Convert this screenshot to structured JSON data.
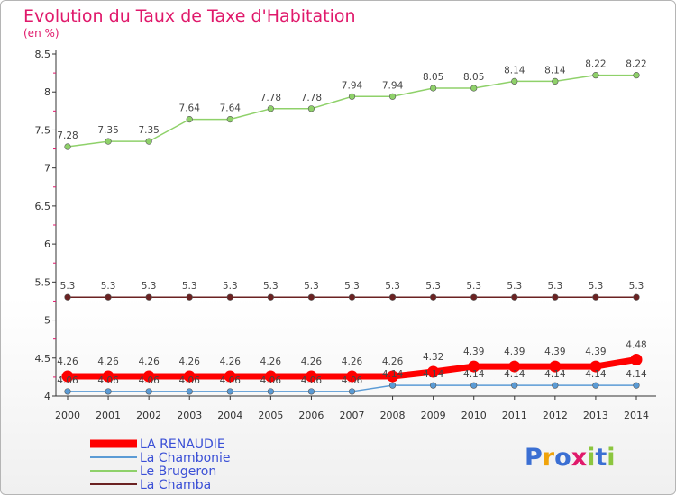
{
  "title": "Evolution du Taux de Taxe d'Habitation",
  "subtitle": "(en %)",
  "logo": {
    "letters": [
      "P",
      "r",
      "o",
      "x",
      "i",
      "t",
      "i"
    ],
    "colors": [
      "#3b6fd3",
      "#f0a30a",
      "#3b6fd3",
      "#e0196b",
      "#8cc63f",
      "#3b6fd3",
      "#8cc63f"
    ]
  },
  "chart_data": {
    "type": "line",
    "x": [
      "2000",
      "2001",
      "2002",
      "2003",
      "2004",
      "2005",
      "2006",
      "2007",
      "2008",
      "2009",
      "2010",
      "2011",
      "2012",
      "2013",
      "2014"
    ],
    "ylim": [
      4,
      8.5
    ],
    "yticks": [
      "4",
      "4.5",
      "5",
      "5.5",
      "6",
      "6.5",
      "7",
      "7.5",
      "8",
      "8.5"
    ],
    "grid": false,
    "legend_position": "bottom-left",
    "series": [
      {
        "name": "LA RENAUDIE",
        "color": "#ff0000",
        "values": [
          4.26,
          4.26,
          4.26,
          4.26,
          4.26,
          4.26,
          4.26,
          4.26,
          4.26,
          4.32,
          4.39,
          4.39,
          4.39,
          4.39,
          4.48
        ],
        "labels": [
          "4.26",
          "4.26",
          "4.26",
          "4.26",
          "4.26",
          "4.26",
          "4.26",
          "4.26",
          "4.26",
          "4.32",
          "4.39",
          "4.39",
          "4.39",
          "4.39",
          "4.48"
        ]
      },
      {
        "name": "La Chambonie",
        "color": "#5b9bd5",
        "values": [
          4.06,
          4.06,
          4.06,
          4.06,
          4.06,
          4.06,
          4.06,
          4.06,
          4.14,
          4.14,
          4.14,
          4.14,
          4.14,
          4.14,
          4.14
        ],
        "labels": [
          "4.06",
          "4.06",
          "4.06",
          "4.06",
          "4.06",
          "4.06",
          "4.06",
          "4.06",
          "4.14",
          "4.14",
          "4.14",
          "4.14",
          "4.14",
          "4.14",
          "4.14"
        ]
      },
      {
        "name": "Le Brugeron",
        "color": "#8fd16a",
        "values": [
          7.28,
          7.35,
          7.35,
          7.64,
          7.64,
          7.78,
          7.78,
          7.94,
          7.94,
          8.05,
          8.05,
          8.14,
          8.14,
          8.22,
          8.22
        ],
        "labels": [
          "7.28",
          "7.35",
          "7.35",
          "7.64",
          "7.64",
          "7.78",
          "7.78",
          "7.94",
          "7.94",
          "8.05",
          "8.05",
          "8.14",
          "8.14",
          "8.22",
          "8.22"
        ]
      },
      {
        "name": "La Chamba",
        "color": "#6b2222",
        "values": [
          5.3,
          5.3,
          5.3,
          5.3,
          5.3,
          5.3,
          5.3,
          5.3,
          5.3,
          5.3,
          5.3,
          5.3,
          5.3,
          5.3,
          5.3
        ],
        "labels": [
          "5.3",
          "5.3",
          "5.3",
          "5.3",
          "5.3",
          "5.3",
          "5.3",
          "5.3",
          "5.3",
          "5.3",
          "5.3",
          "5.3",
          "5.3",
          "5.3",
          "5.3"
        ]
      }
    ]
  }
}
